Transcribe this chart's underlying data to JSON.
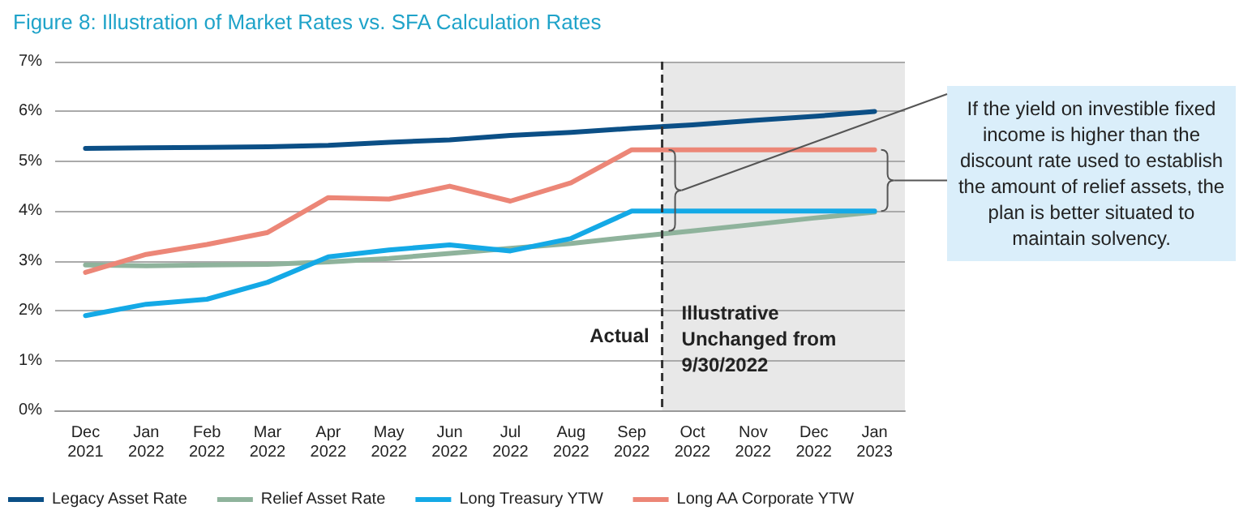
{
  "chart_data": {
    "type": "line",
    "title": "Figure 8: Illustration of Market Rates vs. SFA Calculation Rates",
    "categories": [
      "Dec\n2021",
      "Jan\n2022",
      "Feb\n2022",
      "Mar\n2022",
      "Apr\n2022",
      "May\n2022",
      "Jun\n2022",
      "Jul\n2022",
      "Aug\n2022",
      "Sep\n2022",
      "Oct\n2022",
      "Nov\n2022",
      "Dec\n2022",
      "Jan\n2023"
    ],
    "series": [
      {
        "name": "Legacy Asset Rate",
        "color": "#0b4f86",
        "values": [
          5.26,
          5.27,
          5.28,
          5.29,
          5.32,
          5.38,
          5.43,
          5.52,
          5.58,
          5.66,
          5.73,
          5.82,
          5.9,
          6.0
        ]
      },
      {
        "name": "Relief Asset Rate",
        "color": "#8fb39c",
        "values": [
          2.92,
          2.9,
          2.92,
          2.93,
          2.98,
          3.05,
          3.15,
          3.25,
          3.35,
          3.48,
          3.6,
          3.73,
          3.86,
          3.98
        ]
      },
      {
        "name": "Long Treasury YTW",
        "color": "#14a9e6",
        "values": [
          1.9,
          2.13,
          2.23,
          2.57,
          3.08,
          3.22,
          3.32,
          3.2,
          3.45,
          4.0,
          4.0,
          4.0,
          4.0,
          4.0
        ]
      },
      {
        "name": "Long AA Corporate YTW",
        "color": "#ec8677",
        "values": [
          2.77,
          3.13,
          3.33,
          3.57,
          4.27,
          4.24,
          4.5,
          4.2,
          4.57,
          5.23,
          5.23,
          5.23,
          5.23,
          5.23
        ]
      }
    ],
    "ylim": [
      0,
      7
    ],
    "yticks": [
      {
        "value": 0,
        "label": "0%"
      },
      {
        "value": 1,
        "label": "1%"
      },
      {
        "value": 2,
        "label": "2%"
      },
      {
        "value": 3,
        "label": "3%"
      },
      {
        "value": 4,
        "label": "4%"
      },
      {
        "value": 5,
        "label": "5%"
      },
      {
        "value": 6,
        "label": "6%"
      },
      {
        "value": 7,
        "label": "7%"
      }
    ],
    "grid": "y",
    "legend": "bottom",
    "marker": "none",
    "line_style": "solid",
    "ref_lines": [
      {
        "axis": "x",
        "value": "Oct\n2022",
        "label": "Actual",
        "line_style": "dashed",
        "color": "#333333"
      }
    ],
    "bands": [
      {
        "axis": "x",
        "from": "Oct\n2022",
        "to": "Jan\n2023",
        "label": "Illustrative\nUnchanged from\n9/30/2022",
        "color": "#e8e8e8"
      }
    ],
    "annotations": [
      "If the yield on investible fixed income is higher than the discount rate used to establish the amount of relief assets, the plan is better situated to maintain solvency."
    ]
  }
}
